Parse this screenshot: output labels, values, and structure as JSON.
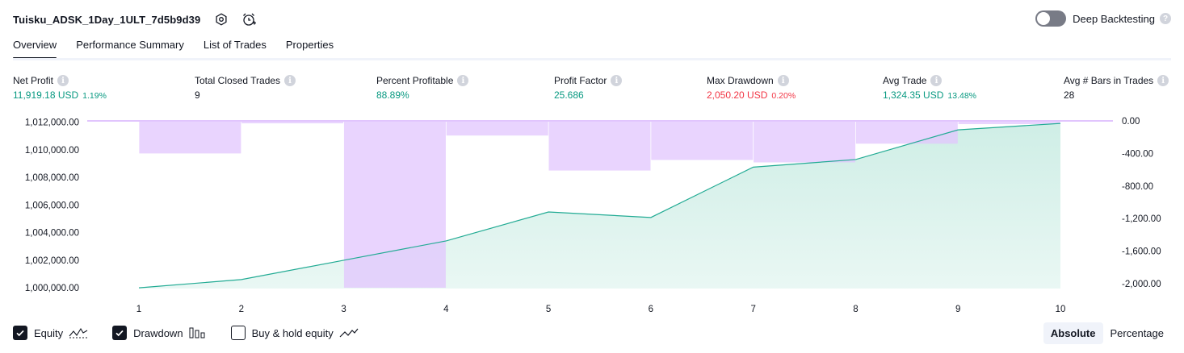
{
  "header": {
    "strategy_name": "Tuisku_ADSK_1Day_1ULT_7d5b9d39",
    "deep_backtesting_label": "Deep Backtesting",
    "deep_backtesting_on": false
  },
  "tabs": [
    {
      "label": "Overview",
      "active": true
    },
    {
      "label": "Performance Summary",
      "active": false
    },
    {
      "label": "List of Trades",
      "active": false
    },
    {
      "label": "Properties",
      "active": false
    }
  ],
  "metrics": {
    "net_profit": {
      "label": "Net Profit",
      "value": "11,919.18 USD",
      "pct": "1.19%"
    },
    "total_closed_trades": {
      "label": "Total Closed Trades",
      "value": "9"
    },
    "percent_profitable": {
      "label": "Percent Profitable",
      "value": "88.89%"
    },
    "profit_factor": {
      "label": "Profit Factor",
      "value": "25.686"
    },
    "max_drawdown": {
      "label": "Max Drawdown",
      "value": "2,050.20 USD",
      "pct": "0.20%"
    },
    "avg_trade": {
      "label": "Avg Trade",
      "value": "1,324.35 USD",
      "pct": "13.48%"
    },
    "avg_bars": {
      "label": "Avg # Bars in Trades",
      "value": "28"
    }
  },
  "legend": {
    "equity_label": "Equity",
    "equity_checked": true,
    "drawdown_label": "Drawdown",
    "drawdown_checked": true,
    "buyhold_label": "Buy & hold equity",
    "buyhold_checked": false
  },
  "scale_toggle": {
    "absolute_label": "Absolute",
    "percentage_label": "Percentage",
    "active": "Absolute"
  },
  "colors": {
    "equity_line": "#22ab94",
    "equity_fill": "#cfeee6",
    "drawdown_bar": "#e1c5fd",
    "drawdown_line": "#e1c5fd",
    "positive": "#089981",
    "negative": "#f23645"
  },
  "chart_data": {
    "type": "line",
    "x": [
      1,
      2,
      3,
      4,
      5,
      6,
      7,
      8,
      9,
      10
    ],
    "x_tick_labels": [
      "1",
      "2",
      "3",
      "4",
      "5",
      "6",
      "7",
      "8",
      "9",
      "10"
    ],
    "left_axis": {
      "tick_labels": [
        "1,012,000.00",
        "1,010,000.00",
        "1,008,000.00",
        "1,006,000.00",
        "1,004,000.00",
        "1,002,000.00",
        "1,000,000.00"
      ],
      "ticks": [
        1012000,
        1010000,
        1008000,
        1006000,
        1004000,
        1002000,
        1000000
      ],
      "ylim": [
        999950,
        1012100
      ]
    },
    "right_axis": {
      "tick_labels": [
        "0.00",
        "-400.00",
        "-800.00",
        "-1,200.00",
        "-1,600.00",
        "-2,000.00"
      ],
      "ticks": [
        0,
        -400,
        -800,
        -1200,
        -1600,
        -2000
      ],
      "ylim": [
        -2060,
        0
      ]
    },
    "series": [
      {
        "name": "Equity",
        "axis": "left",
        "values": [
          1000000,
          1000600,
          1002000,
          1003400,
          1005500,
          1005100,
          1008750,
          1009300,
          1011450,
          1011919
        ]
      },
      {
        "name": "Drawdown",
        "axis": "right",
        "type": "bar",
        "values": [
          0,
          -400,
          -30,
          -2050,
          -180,
          -610,
          -480,
          -510,
          -280,
          -40
        ]
      }
    ],
    "grid": false
  }
}
